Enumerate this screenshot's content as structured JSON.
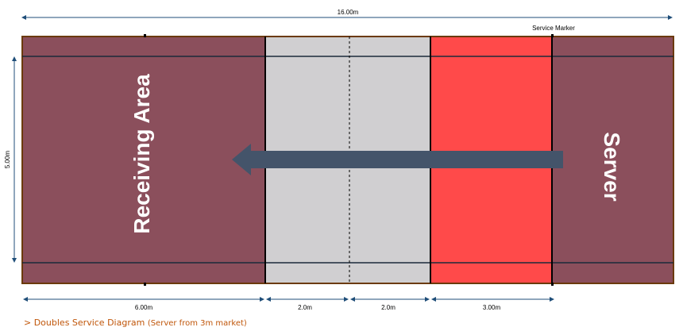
{
  "diagram": {
    "total_length_label": "16.00m",
    "width_label": "5.00m",
    "service_marker_label": "Service Marker",
    "receiving_label": "Receiving Area",
    "server_label": "Server",
    "segments": [
      {
        "label": "6.00m",
        "color": "#8b4f5c"
      },
      {
        "label": "2.0m",
        "color": "#d0cfd1"
      },
      {
        "label": "2.0m",
        "color": "#d0cfd1"
      },
      {
        "label": "3.00m",
        "color": "#ff4a4a"
      }
    ],
    "end_zone_color": "#8b4f5c",
    "arrow_color": "#44546a",
    "dimension_color": "#1f4e79"
  },
  "caption": {
    "prefix": "> Doubles Service Diagram",
    "note": "(Server from 3m market)"
  }
}
